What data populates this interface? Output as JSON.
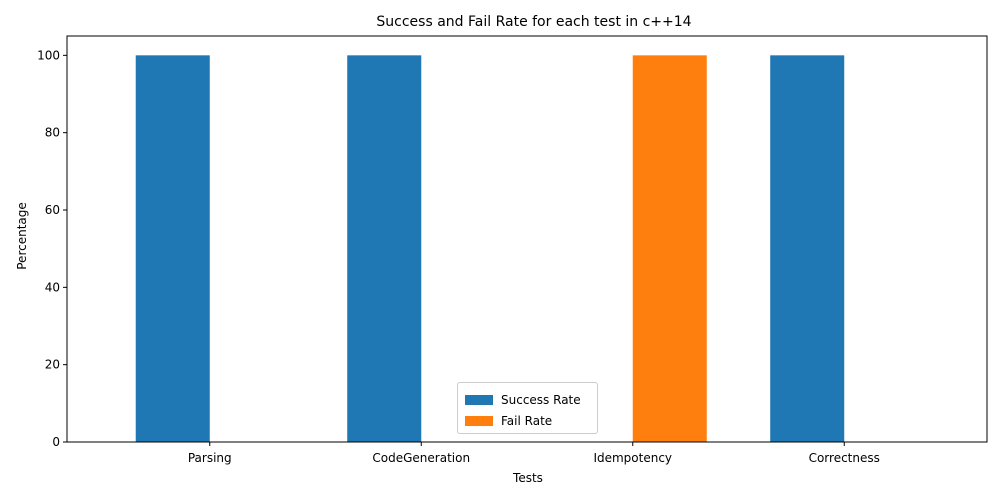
{
  "chart_data": {
    "type": "bar",
    "title": "Success and Fail Rate for each test in c++14",
    "xlabel": "Tests",
    "ylabel": "Percentage",
    "categories": [
      "Parsing",
      "CodeGeneration",
      "Idempotency",
      "Correctness"
    ],
    "series": [
      {
        "name": "Success Rate",
        "values": [
          100,
          100,
          0,
          100
        ],
        "color": "#1f77b4"
      },
      {
        "name": "Fail Rate",
        "values": [
          0,
          0,
          100,
          0
        ],
        "color": "#ff7f0e"
      }
    ],
    "ylim": [
      0,
      105
    ],
    "yticks": [
      "0",
      "20",
      "40",
      "60",
      "80",
      "100"
    ],
    "grid": false,
    "legend_position": "bottom-center"
  }
}
